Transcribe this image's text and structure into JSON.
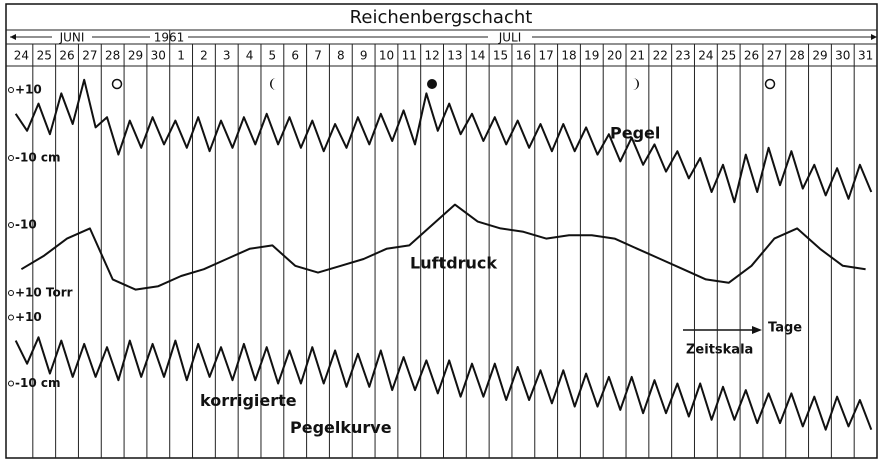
{
  "chart_data": {
    "type": "line",
    "title": "Reichenbergschacht",
    "months": [
      "JUNI",
      "JULI"
    ],
    "year": "1961",
    "categories": [
      "24",
      "25",
      "26",
      "27",
      "28",
      "29",
      "30",
      "1",
      "2",
      "3",
      "4",
      "5",
      "6",
      "7",
      "8",
      "9",
      "10",
      "11",
      "12",
      "13",
      "14",
      "15",
      "16",
      "17",
      "18",
      "19",
      "20",
      "21",
      "22",
      "23",
      "24",
      "25",
      "26",
      "27",
      "28",
      "29",
      "30",
      "31"
    ],
    "series": [
      {
        "name": "Pegel",
        "color": "#111111",
        "ylim": [
          -25,
          15
        ],
        "yticks": [
          {
            "value": 10,
            "label": "+10"
          },
          {
            "value": -10,
            "label": "-10 cm"
          }
        ],
        "values": [
          [
            3,
            -2
          ],
          [
            6,
            -3
          ],
          [
            9,
            0
          ],
          [
            13,
            -1
          ],
          [
            2,
            -9
          ],
          [
            1,
            -7
          ],
          [
            2,
            -6
          ],
          [
            1,
            -7
          ],
          [
            2,
            -8
          ],
          [
            1,
            -7
          ],
          [
            2,
            -6
          ],
          [
            3,
            -6
          ],
          [
            2,
            -7
          ],
          [
            1,
            -8
          ],
          [
            0,
            -7
          ],
          [
            2,
            -6
          ],
          [
            3,
            -5
          ],
          [
            4,
            -6
          ],
          [
            9,
            -2
          ],
          [
            6,
            -3
          ],
          [
            3,
            -5
          ],
          [
            2,
            -6
          ],
          [
            1,
            -7
          ],
          [
            0,
            -8
          ],
          [
            0,
            -8
          ],
          [
            -1,
            -9
          ],
          [
            -3,
            -11
          ],
          [
            -4,
            -12
          ],
          [
            -6,
            -14
          ],
          [
            -8,
            -16
          ],
          [
            -10,
            -20
          ],
          [
            -12,
            -23
          ],
          [
            -9,
            -20
          ],
          [
            -7,
            -18
          ],
          [
            -8,
            -19
          ],
          [
            -12,
            -21
          ],
          [
            -13,
            -22
          ],
          [
            -12,
            -20
          ]
        ]
      },
      {
        "name": "Luftdruck",
        "color": "#111111",
        "ylim": [
          15,
          -20
        ],
        "yticks": [
          {
            "value": -10,
            "label": "-10"
          },
          {
            "value": 10,
            "label": "+10 Torr"
          }
        ],
        "values": [
          3,
          -1,
          -6,
          -9,
          6,
          9,
          8,
          5,
          3,
          0,
          -3,
          -4,
          2,
          4,
          2,
          0,
          -3,
          -4,
          -10,
          -16,
          -11,
          -9,
          -8,
          -6,
          -7,
          -7,
          -6,
          -3,
          0,
          3,
          6,
          7,
          2,
          -6,
          -9,
          -3,
          2,
          3
        ]
      },
      {
        "name": "korrigierte Pegelkurve",
        "color": "#111111",
        "ylim": [
          -25,
          15
        ],
        "yticks": [
          {
            "value": 10,
            "label": "+10"
          },
          {
            "value": -10,
            "label": "-10 cm"
          }
        ],
        "values": [
          [
            3,
            -4
          ],
          [
            4,
            -7
          ],
          [
            3,
            -8
          ],
          [
            2,
            -8
          ],
          [
            1,
            -9
          ],
          [
            3,
            -8
          ],
          [
            2,
            -8
          ],
          [
            3,
            -9
          ],
          [
            2,
            -8
          ],
          [
            1,
            -9
          ],
          [
            2,
            -9
          ],
          [
            1,
            -10
          ],
          [
            0,
            -10
          ],
          [
            1,
            -10
          ],
          [
            0,
            -11
          ],
          [
            -1,
            -11
          ],
          [
            0,
            -12
          ],
          [
            -2,
            -12
          ],
          [
            -3,
            -13
          ],
          [
            -3,
            -14
          ],
          [
            -4,
            -14
          ],
          [
            -4,
            -15
          ],
          [
            -5,
            -15
          ],
          [
            -6,
            -16
          ],
          [
            -6,
            -17
          ],
          [
            -7,
            -17
          ],
          [
            -8,
            -18
          ],
          [
            -8,
            -19
          ],
          [
            -9,
            -19
          ],
          [
            -10,
            -20
          ],
          [
            -10,
            -21
          ],
          [
            -11,
            -21
          ],
          [
            -12,
            -22
          ],
          [
            -13,
            -22
          ],
          [
            -13,
            -23
          ],
          [
            -14,
            -24
          ],
          [
            -14,
            -23
          ],
          [
            -15,
            -24
          ]
        ]
      }
    ],
    "time_scale": {
      "label": "Zeitskala",
      "unit": "Tage"
    }
  }
}
